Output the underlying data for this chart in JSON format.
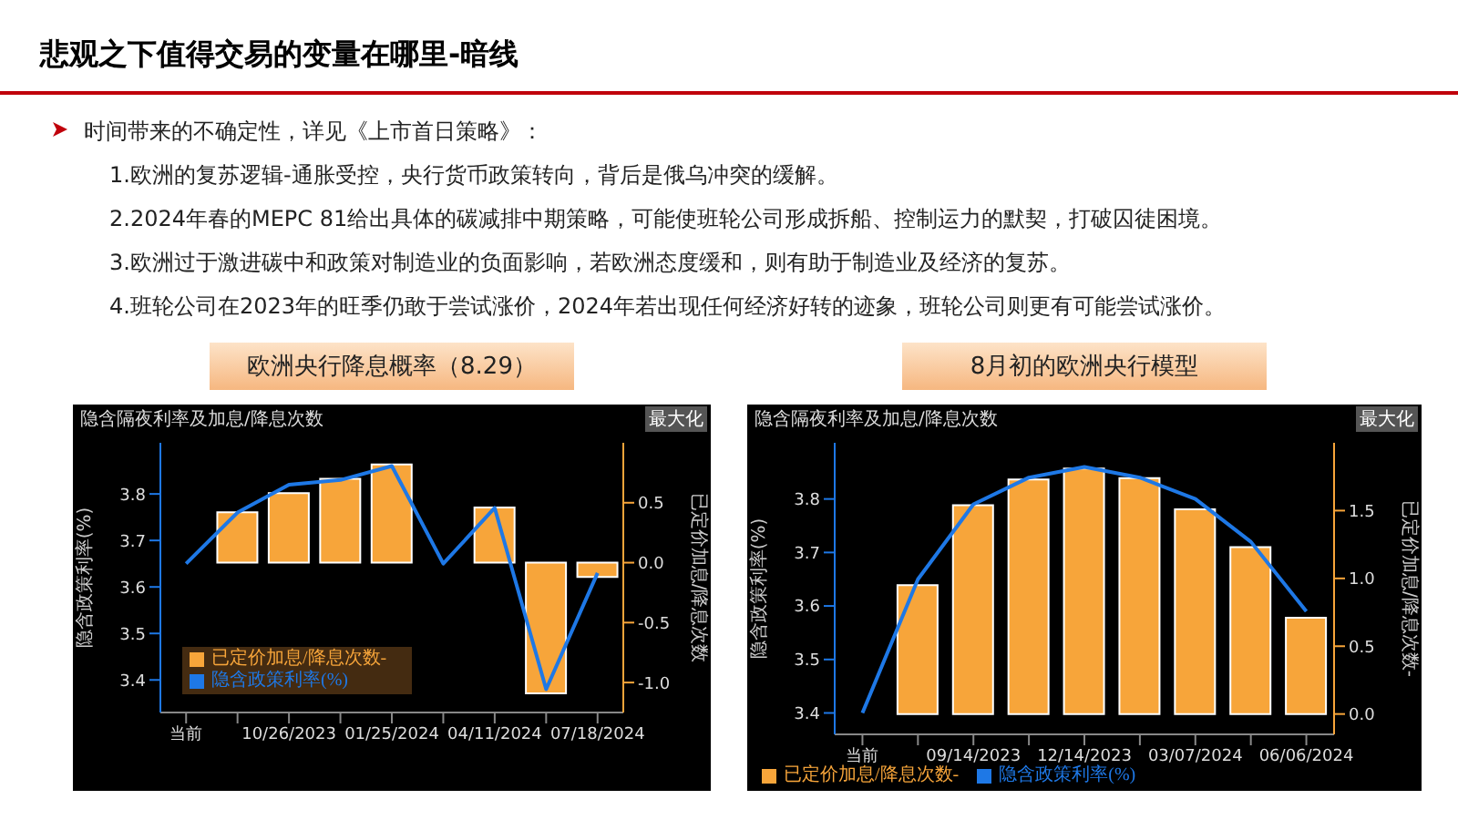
{
  "chart_data": [
    {
      "type": "other",
      "title": "悲观之下值得交易的变量在哪里-暗线",
      "annotations": [
        "时间带来的不确定性，详见《上市首日策略》：",
        "1.欧洲的复苏逻辑-通胀受控，央行货币政策转向，背后是俄乌冲突的缓解。",
        "2.2024年春的MEPC 81给出具体的碳减排中期策略，可能使班轮公司形成拆船、控制运力的默契，打破囚徒困境。",
        "3.欧洲过于激进碳中和政策对制造业的负面影响，若欧洲态度缓和，则有助于制造业及经济的复苏。",
        "4.班轮公司在2023年的旺季仍敢于尝试涨价，2024年若出现任何经济好转的迹象，班轮公司则更有可能尝试涨价。"
      ]
    },
    {
      "type": "bar",
      "title": "欧洲央行降息概率（8.29）",
      "subtitle": "隐含隔夜利率及加息/降息次数",
      "ylabel": "隐含政策利率(%)",
      "y2label": "已定价加息/降息次数",
      "categories": [
        "当前",
        null,
        "10/26/2023",
        null,
        "01/25/2024",
        null,
        "04/11/2024",
        null,
        "07/18/2024"
      ],
      "series": [
        {
          "name": "隐含政策利率(%)",
          "type": "line",
          "color": "#1e78e6",
          "values": [
            3.65,
            3.76,
            3.82,
            3.83,
            3.86,
            3.65,
            3.77,
            3.38,
            3.63
          ]
        },
        {
          "name": "已定价加息/降息次数-",
          "type": "bar",
          "axis": "y2",
          "color": "#f7a53a",
          "values": [
            0,
            0.42,
            0.58,
            0.7,
            0.82,
            0,
            0.46,
            -1.09,
            -0.12
          ]
        }
      ],
      "ylim": [
        3.33,
        3.91
      ],
      "yticks": [
        3.4,
        3.5,
        3.6,
        3.7,
        3.8
      ],
      "y2lim": [
        -1.25,
        1.0
      ],
      "y2ticks": [
        {
          "value": -1,
          "label": "-1.0"
        },
        {
          "value": -0.5,
          "label": "-0.5"
        },
        {
          "value": 0,
          "label": "0.0"
        },
        {
          "value": 0.5,
          "label": "0.5"
        }
      ],
      "legend": "bottom left",
      "marker": "none",
      "annotations": [
        "最大化"
      ]
    },
    {
      "type": "bar",
      "title": "8月初的欧洲央行模型",
      "subtitle": "隐含隔夜利率及加息/降息次数",
      "ylabel": "隐含政策利率(%)",
      "y2label": "已定价加息/降息次数-",
      "categories": [
        "当前",
        null,
        "09/14/2023",
        null,
        "12/14/2023",
        null,
        "03/07/2024",
        null,
        "06/06/2024"
      ],
      "series": [
        {
          "name": "隐含政策利率(%)",
          "type": "line",
          "color": "#1e78e6",
          "values": [
            3.4,
            3.65,
            3.79,
            3.84,
            3.86,
            3.84,
            3.8,
            3.72,
            3.59
          ]
        },
        {
          "name": "已定价加息/降息次数-",
          "type": "bar",
          "axis": "y2",
          "color": "#f7a53a",
          "values": [
            0,
            0.95,
            1.54,
            1.73,
            1.81,
            1.74,
            1.51,
            1.23,
            0.71
          ]
        }
      ],
      "ylim": [
        3.36,
        3.905
      ],
      "yticks": [
        3.4,
        3.5,
        3.6,
        3.7,
        3.8
      ],
      "y2lim": [
        -0.15,
        2.0
      ],
      "y2ticks": [
        {
          "value": 0,
          "label": "0.0"
        },
        {
          "value": 0.5,
          "label": "0.5"
        },
        {
          "value": 1,
          "label": "1.0"
        },
        {
          "value": 1.5,
          "label": "1.5"
        }
      ],
      "legend": "bottom",
      "marker": "none",
      "annotations": [
        "最大化"
      ]
    }
  ]
}
